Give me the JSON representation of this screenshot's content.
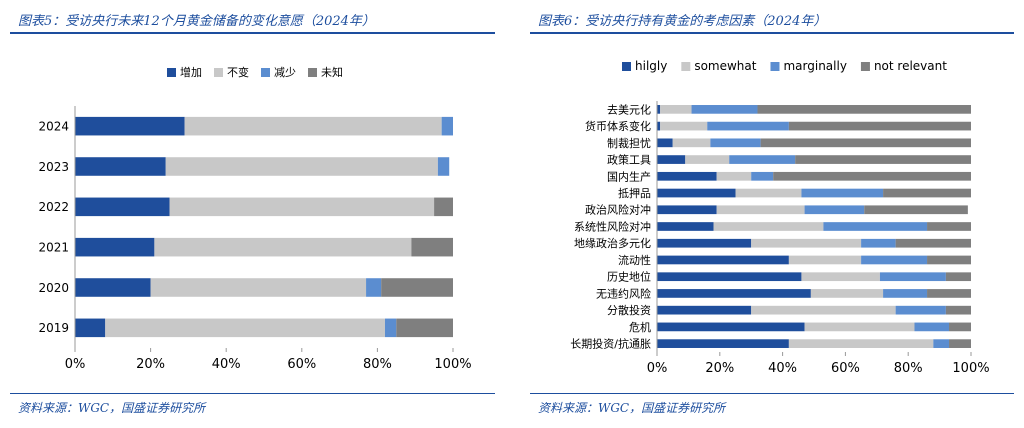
{
  "colors": {
    "accent": "#1d4e9e",
    "increase": "#1f4e9c",
    "unchanged": "#c8c8c8",
    "decrease": "#5b8dd0",
    "unknown": "#7f7f7f"
  },
  "left": {
    "title": "图表5：受访央行未来12个月黄金储备的变化意愿（2024年）",
    "source": "资料来源：WGC，国盛证券研究所"
  },
  "right": {
    "title": "图表6：受访央行持有黄金的考虑因素（2024年）",
    "source": "资料来源：WGC，国盛证券研究所"
  },
  "chart_data": [
    {
      "type": "bar",
      "orientation": "horizontal",
      "stacked": true,
      "categories": [
        "2024",
        "2023",
        "2022",
        "2021",
        "2020",
        "2019"
      ],
      "series": [
        {
          "name": "增加",
          "color": "#1f4e9c",
          "values": [
            29,
            24,
            25,
            21,
            20,
            8
          ]
        },
        {
          "name": "不变",
          "color": "#c8c8c8",
          "values": [
            68,
            72,
            70,
            68,
            57,
            74
          ]
        },
        {
          "name": "减少",
          "color": "#5b8dd0",
          "values": [
            3,
            3,
            0,
            0,
            4,
            3
          ]
        },
        {
          "name": "未知",
          "color": "#7f7f7f",
          "values": [
            0,
            0,
            5,
            11,
            19,
            15
          ]
        }
      ],
      "xlim": [
        0,
        100
      ],
      "xticks": [
        "0%",
        "20%",
        "40%",
        "60%",
        "80%",
        "100%"
      ],
      "legend": "top"
    },
    {
      "type": "bar",
      "orientation": "horizontal",
      "stacked": true,
      "categories": [
        "去美元化",
        "货币体系变化",
        "制裁担忧",
        "政策工具",
        "国内生产",
        "抵押品",
        "政治风险对冲",
        "系统性风险对冲",
        "地缘政治多元化",
        "流动性",
        "历史地位",
        "无违约风险",
        "分散投资",
        "危机",
        "长期投资/抗通胀"
      ],
      "series": [
        {
          "name": "hilgly",
          "color": "#1f4e9c",
          "values": [
            1,
            1,
            5,
            9,
            19,
            25,
            19,
            18,
            30,
            42,
            46,
            49,
            30,
            47,
            42
          ]
        },
        {
          "name": "somewhat",
          "color": "#c8c8c8",
          "values": [
            10,
            15,
            12,
            14,
            11,
            21,
            28,
            35,
            35,
            23,
            25,
            23,
            46,
            35,
            46
          ]
        },
        {
          "name": "marginally",
          "color": "#5b8dd0",
          "values": [
            21,
            26,
            16,
            21,
            7,
            26,
            19,
            33,
            11,
            21,
            21,
            14,
            16,
            11,
            5
          ]
        },
        {
          "name": "not relevant",
          "color": "#7f7f7f",
          "values": [
            68,
            58,
            67,
            56,
            63,
            28,
            33,
            14,
            24,
            14,
            8,
            14,
            8,
            7,
            7
          ]
        }
      ],
      "xlim": [
        0,
        100
      ],
      "xticks": [
        "0%",
        "20%",
        "40%",
        "60%",
        "80%",
        "100%"
      ],
      "legend": "top"
    }
  ]
}
